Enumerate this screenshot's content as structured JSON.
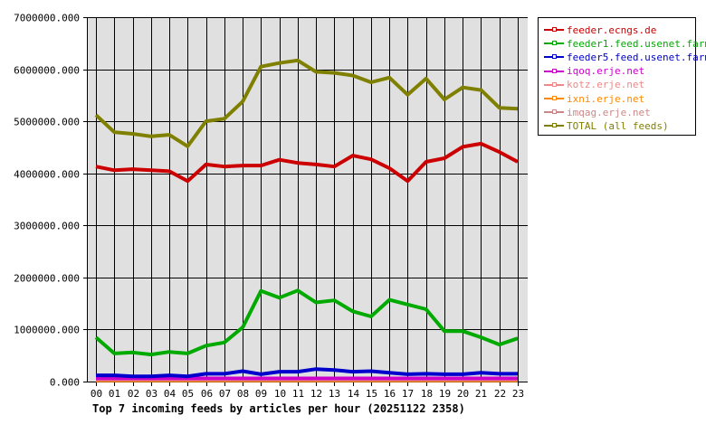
{
  "chart_data": {
    "type": "line",
    "title": "Top 7 incoming feeds by articles per hour (20251122 2358)",
    "xlabel": "",
    "ylabel": "",
    "ylim": [
      0,
      7000000
    ],
    "yticks": [
      "0.000",
      "1000000.000",
      "2000000.000",
      "3000000.000",
      "4000000.000",
      "5000000.000",
      "6000000.000",
      "7000000.000"
    ],
    "grid": true,
    "legend_position": "right",
    "categories": [
      "00",
      "01",
      "02",
      "03",
      "04",
      "05",
      "06",
      "07",
      "08",
      "09",
      "10",
      "11",
      "12",
      "13",
      "14",
      "15",
      "16",
      "17",
      "18",
      "19",
      "20",
      "21",
      "22",
      "23"
    ],
    "series": [
      {
        "name": "feeder.ecngs.de",
        "color": "#cc0000",
        "values": [
          4130000,
          4060000,
          4080000,
          4060000,
          4040000,
          3850000,
          4170000,
          4130000,
          4150000,
          4150000,
          4260000,
          4200000,
          4170000,
          4130000,
          4340000,
          4270000,
          4100000,
          3850000,
          4220000,
          4290000,
          4510000,
          4570000,
          4410000,
          4220000
        ]
      },
      {
        "name": "feeder1.feed.usenet.farm",
        "color": "#00aa00",
        "values": [
          850000,
          540000,
          560000,
          520000,
          570000,
          540000,
          690000,
          750000,
          1040000,
          1740000,
          1610000,
          1750000,
          1520000,
          1560000,
          1350000,
          1250000,
          1570000,
          1480000,
          1390000,
          970000,
          970000,
          850000,
          710000,
          830000
        ]
      },
      {
        "name": "feeder5.feed.usenet.farm",
        "color": "#0000cc",
        "values": [
          120000,
          120000,
          100000,
          100000,
          120000,
          100000,
          150000,
          150000,
          200000,
          140000,
          190000,
          190000,
          240000,
          220000,
          190000,
          200000,
          170000,
          140000,
          150000,
          140000,
          140000,
          170000,
          150000,
          150000
        ]
      },
      {
        "name": "iqoq.erje.net",
        "color": "#cc00cc",
        "values": [
          60000,
          60000,
          60000,
          60000,
          60000,
          60000,
          60000,
          60000,
          60000,
          60000,
          60000,
          60000,
          60000,
          60000,
          60000,
          60000,
          60000,
          60000,
          60000,
          60000,
          60000,
          60000,
          60000,
          60000
        ]
      },
      {
        "name": "kotz.erje.net",
        "color": "#ee8888",
        "values": [
          50000,
          50000,
          50000,
          50000,
          50000,
          50000,
          50000,
          50000,
          50000,
          50000,
          50000,
          50000,
          50000,
          50000,
          50000,
          50000,
          50000,
          50000,
          50000,
          50000,
          50000,
          50000,
          50000,
          50000
        ]
      },
      {
        "name": "ixni.erje.net",
        "color": "#ff8800",
        "values": [
          20000,
          20000,
          20000,
          20000,
          20000,
          20000,
          20000,
          20000,
          20000,
          20000,
          20000,
          20000,
          20000,
          20000,
          20000,
          20000,
          20000,
          20000,
          20000,
          20000,
          20000,
          20000,
          20000,
          20000
        ]
      },
      {
        "name": "imqag.erje.net",
        "color": "#cc8888",
        "values": [
          30000,
          30000,
          30000,
          30000,
          30000,
          30000,
          30000,
          30000,
          30000,
          30000,
          30000,
          30000,
          30000,
          30000,
          30000,
          30000,
          30000,
          30000,
          30000,
          30000,
          30000,
          30000,
          30000,
          30000
        ]
      },
      {
        "name": "TOTAL (all feeds)",
        "color": "#808000",
        "values": [
          5120000,
          4790000,
          4760000,
          4710000,
          4740000,
          4520000,
          5000000,
          5050000,
          5380000,
          6050000,
          6120000,
          6170000,
          5950000,
          5930000,
          5880000,
          5750000,
          5840000,
          5510000,
          5820000,
          5420000,
          5650000,
          5600000,
          5260000,
          5240000
        ]
      }
    ]
  }
}
